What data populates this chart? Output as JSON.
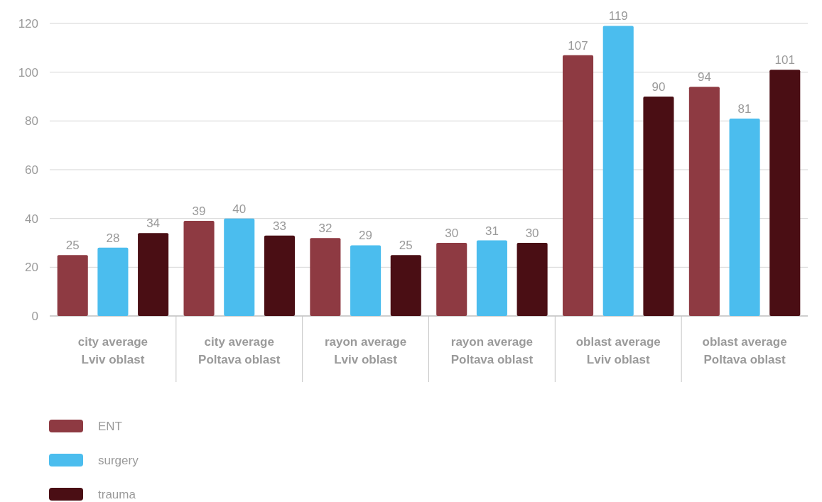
{
  "chart_data": {
    "type": "bar",
    "categories": [
      "city average Lviv oblast",
      "city average Poltava oblast",
      "rayon average Lviv oblast",
      "rayon average Poltava oblast",
      "oblast average Lviv oblast",
      "oblast average Poltava oblast"
    ],
    "series": [
      {
        "name": "ENT",
        "color": "#8e3a42",
        "values": [
          25,
          39,
          32,
          30,
          107,
          94
        ]
      },
      {
        "name": "surgery",
        "color": "#4bbdee",
        "values": [
          28,
          40,
          29,
          31,
          119,
          81
        ]
      },
      {
        "name": "trauma",
        "color": "#4a0e14",
        "values": [
          34,
          33,
          25,
          30,
          90,
          101
        ]
      }
    ],
    "ylim": [
      0,
      120
    ],
    "yticks": [
      0,
      20,
      40,
      60,
      80,
      100,
      120
    ],
    "grid": "y",
    "data_labels": true,
    "legend": "bottom left"
  }
}
